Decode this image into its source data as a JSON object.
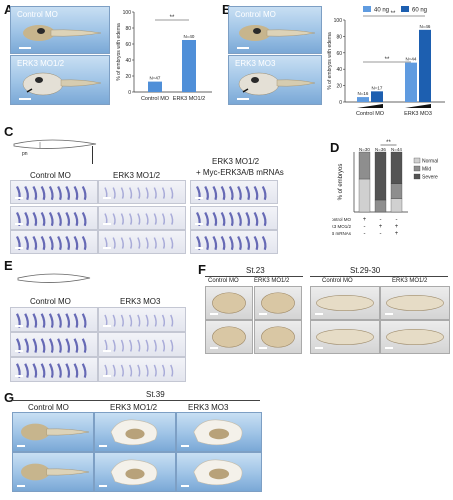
{
  "panels": {
    "A": {
      "letter": "A",
      "labels": [
        "Control MO",
        "ERK3 MO1/2"
      ],
      "chart": {
        "ylabel": "% of embryos with edema",
        "yticks": [
          "0",
          "20",
          "40",
          "60",
          "80",
          "100"
        ],
        "categories": [
          "Control MO",
          "ERK3 MO1/2"
        ],
        "n_labels": [
          "N=47",
          "N=40"
        ],
        "sig": "**"
      }
    },
    "B": {
      "letter": "B",
      "labels": [
        "Control MO",
        "ERK3 MO3"
      ],
      "chart": {
        "ylabel": "% of embryos with edema",
        "yticks": [
          "0",
          "20",
          "40",
          "60",
          "80",
          "100"
        ],
        "legend": [
          "40 ng",
          "60 ng"
        ],
        "categories": [
          "Control MO",
          "ERK3 MO3"
        ],
        "n_labels": [
          "N=16",
          "N=17",
          "N=44",
          "N=46"
        ],
        "sig": [
          "**",
          "**"
        ]
      }
    },
    "C": {
      "letter": "C",
      "small_label": "pn",
      "headers": [
        "Control MO",
        "ERK3 MO1/2",
        "ERK3 MO1/2",
        "+ Myc-ERK3A/B mRNAs"
      ]
    },
    "D": {
      "letter": "D",
      "ylabel": "% of embryos",
      "n_labels": [
        "N=30",
        "N=36",
        "N=44"
      ],
      "sig": "**",
      "legend": [
        "Normal",
        "Mild",
        "Severe"
      ],
      "row_labels": [
        "Control MO",
        "ERK3 MO1/2",
        "Myc-ERK3A/B mRNAs"
      ],
      "row_marks": [
        [
          "+",
          "-",
          "-"
        ],
        [
          "-",
          "+",
          "+"
        ],
        [
          "-",
          "-",
          "+"
        ]
      ]
    },
    "E": {
      "letter": "E",
      "headers": [
        "Control MO",
        "ERK3 MO3"
      ]
    },
    "F": {
      "letter": "F",
      "stages": [
        "St.23",
        "St.29-30"
      ],
      "headers": [
        "Control MO",
        "ERK3 MO1/2",
        "Control MO",
        "ERK3 MO1/2"
      ]
    },
    "G": {
      "letter": "G",
      "stage": "St.39",
      "headers": [
        "Control MO",
        "ERK3 MO1/2",
        "ERK3 MO3"
      ]
    }
  },
  "chart_data": [
    {
      "type": "bar",
      "panel": "A",
      "categories": [
        "Control MO",
        "ERK3 MO1/2"
      ],
      "values": [
        13,
        65
      ],
      "ylabel": "% of embryos with edema",
      "ylim": [
        0,
        100
      ],
      "colors": [
        "#4f8fd8",
        "#4f8fd8"
      ]
    },
    {
      "type": "bar",
      "panel": "B",
      "categories": [
        "Control MO",
        "ERK3 MO3"
      ],
      "series": [
        {
          "name": "40 ng",
          "values": [
            6,
            48
          ]
        },
        {
          "name": "60 ng",
          "values": [
            13,
            88
          ]
        }
      ],
      "ylabel": "% of embryos with edema",
      "ylim": [
        0,
        100
      ],
      "legend_position": "top-right",
      "colors": [
        "#5f9be0",
        "#1d5fb0"
      ]
    },
    {
      "type": "bar",
      "panel": "D",
      "categories": [
        "1",
        "2",
        "3"
      ],
      "series": [
        {
          "name": "Normal",
          "values": [
            55,
            0,
            22
          ]
        },
        {
          "name": "Mild",
          "values": [
            45,
            20,
            25
          ]
        },
        {
          "name": "Severe",
          "values": [
            0,
            80,
            53
          ]
        }
      ],
      "stacked": true,
      "ylabel": "% of embryos",
      "ylim": [
        0,
        100
      ],
      "colors": [
        "#d0d0d0",
        "#8e8e8e",
        "#545454"
      ]
    }
  ]
}
